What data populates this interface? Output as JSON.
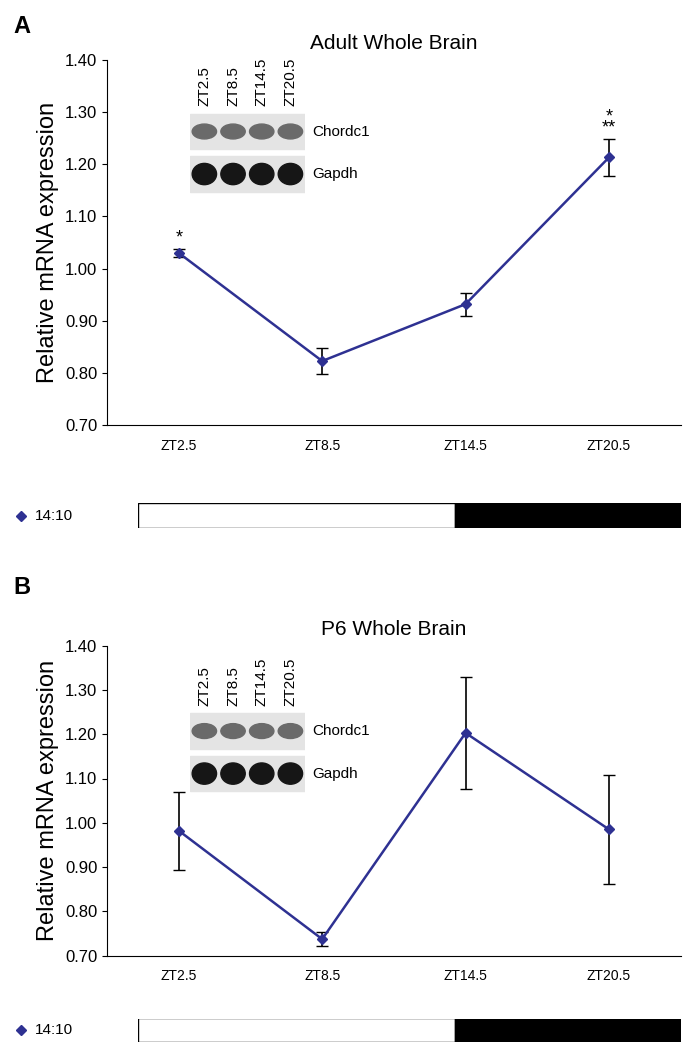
{
  "chart_data": [
    {
      "type": "line",
      "panel": "A",
      "title": "Adult Whole Brain",
      "y_label": "Relative mRNA expression",
      "categories": [
        "ZT2.5",
        "ZT8.5",
        "ZT14.5",
        "ZT20.5"
      ],
      "series": [
        {
          "name": "14:10",
          "color": "#2e3192",
          "marker": "diamond",
          "values": [
            1.03,
            0.823,
            0.932,
            1.213
          ],
          "errors": [
            0.008,
            0.025,
            0.022,
            0.035
          ]
        }
      ],
      "ylim": [
        0.7,
        1.4
      ],
      "yticks": [
        {
          "value": 0.7,
          "label": "0.70"
        },
        {
          "value": 0.8,
          "label": "0.80"
        },
        {
          "value": 0.9,
          "label": "0.90"
        },
        {
          "value": 1.0,
          "label": "1.00"
        },
        {
          "value": 1.1,
          "label": "1.10"
        },
        {
          "value": 1.2,
          "label": "1.20"
        },
        {
          "value": 1.3,
          "label": "1.30"
        },
        {
          "value": 1.4,
          "label": "1.40"
        }
      ],
      "annotations": [
        {
          "category": "ZT2.5",
          "text": "*"
        },
        {
          "category": "ZT20.5",
          "text": "**"
        },
        {
          "category": "ZT20.5",
          "text": "*"
        }
      ],
      "blot": {
        "lanes": [
          "ZT2.5",
          "ZT8.5",
          "ZT14.5",
          "ZT20.5"
        ],
        "genes": [
          "Chordc1",
          "Gapdh"
        ]
      },
      "photoperiod": {
        "label": "14:10",
        "light_hours": 14,
        "dark_hours": 10
      }
    },
    {
      "type": "line",
      "panel": "B",
      "title": "P6 Whole Brain",
      "y_label": "Relative mRNA expression",
      "categories": [
        "ZT2.5",
        "ZT8.5",
        "ZT14.5",
        "ZT20.5"
      ],
      "series": [
        {
          "name": "14:10",
          "color": "#2e3192",
          "marker": "diamond",
          "values": [
            0.982,
            0.737,
            1.203,
            0.985
          ],
          "errors": [
            0.088,
            0.016,
            0.127,
            0.123
          ]
        }
      ],
      "ylim": [
        0.7,
        1.4
      ],
      "yticks": [
        {
          "value": 0.7,
          "label": "0.70"
        },
        {
          "value": 0.8,
          "label": "0.80"
        },
        {
          "value": 0.9,
          "label": "0.90"
        },
        {
          "value": 1.0,
          "label": "1.00"
        },
        {
          "value": 1.1,
          "label": "1.10"
        },
        {
          "value": 1.2,
          "label": "1.20"
        },
        {
          "value": 1.3,
          "label": "1.30"
        },
        {
          "value": 1.4,
          "label": "1.40"
        }
      ],
      "annotations": [],
      "blot": {
        "lanes": [
          "ZT2.5",
          "ZT8.5",
          "ZT14.5",
          "ZT20.5"
        ],
        "genes": [
          "Chordc1",
          "Gapdh"
        ]
      },
      "photoperiod": {
        "label": "14:10",
        "light_hours": 14,
        "dark_hours": 10
      }
    }
  ]
}
